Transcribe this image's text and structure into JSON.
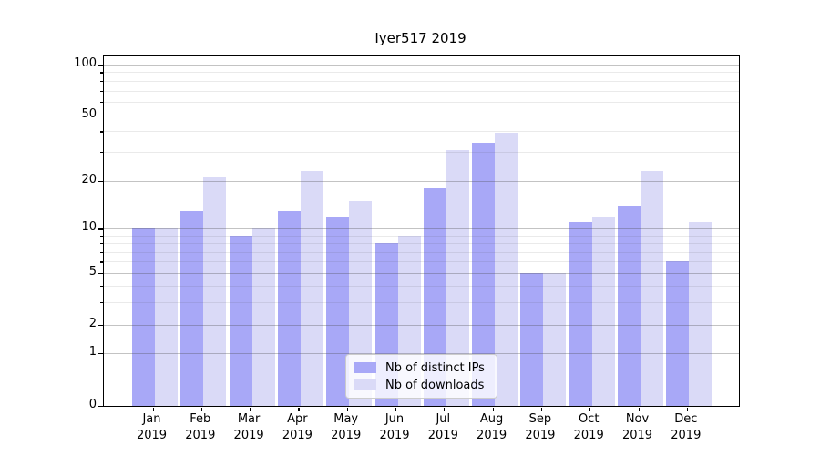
{
  "chart_data": {
    "type": "bar",
    "title": "Iyer517 2019",
    "categories": [
      "Jan 2019",
      "Feb 2019",
      "Mar 2019",
      "Apr 2019",
      "May 2019",
      "Jun 2019",
      "Jul 2019",
      "Aug 2019",
      "Sep 2019",
      "Oct 2019",
      "Nov 2019",
      "Dec 2019"
    ],
    "month_labels": [
      "Jan",
      "Feb",
      "Mar",
      "Apr",
      "May",
      "Jun",
      "Jul",
      "Aug",
      "Sep",
      "Oct",
      "Nov",
      "Dec"
    ],
    "year_label": "2019",
    "series": [
      {
        "name": "Nb of distinct IPs",
        "color": "#a8a8f7",
        "values": [
          10,
          13,
          9,
          13,
          12,
          8,
          18,
          34,
          5,
          11,
          14,
          6
        ]
      },
      {
        "name": "Nb of downloads",
        "color": "#dadaf7",
        "values": [
          10,
          21,
          10,
          23,
          15,
          9,
          31,
          39,
          5,
          12,
          23,
          11
        ]
      }
    ],
    "y_axis": {
      "scale": "log-like (linear 0-1, log above)",
      "major_ticks": [
        0,
        1,
        2,
        5,
        10,
        20,
        50,
        100
      ],
      "minor_ticks": [
        3,
        4,
        6,
        7,
        8,
        9,
        30,
        40,
        60,
        70,
        80,
        90
      ],
      "range": [
        0,
        100
      ]
    },
    "grid": true,
    "legend_position": "bottom-center"
  },
  "colors": {
    "bar_dark": "#a8a8f7",
    "bar_light": "#dadaf7",
    "grid_major": "#c3c3c3",
    "grid_minor": "#eaeaea",
    "axis": "#000000",
    "background": "#ffffff"
  }
}
